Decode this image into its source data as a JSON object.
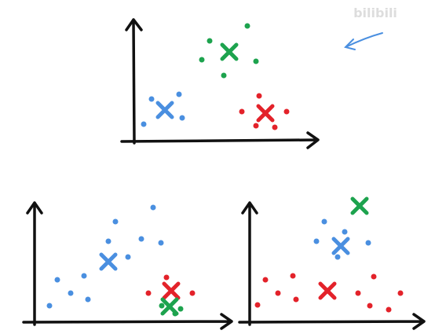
{
  "watermark": "bilibili"
}
